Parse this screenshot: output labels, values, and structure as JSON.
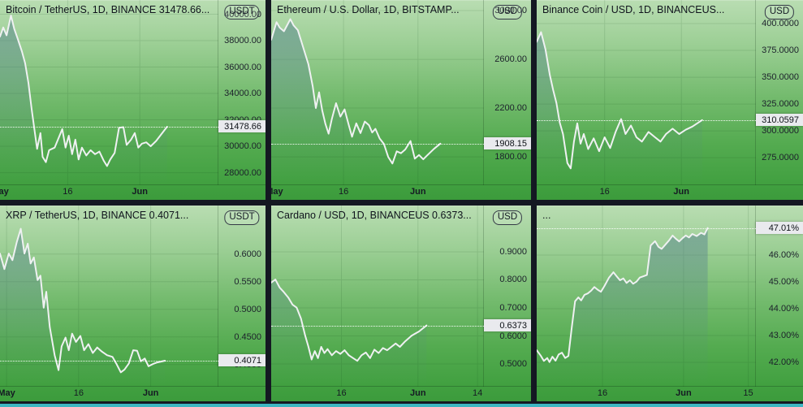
{
  "colors": {
    "background_top": "#b9ddb2",
    "background_bottom": "#3c9b3c",
    "separator": "#141822",
    "chart_line": "#eff1f2",
    "area_fill": "#54808e",
    "price_tag_bg": "#e9eaee",
    "bottom_accent": "#3db6c2"
  },
  "panels": [
    {
      "title": "Bitcoin / TetherUS, 1D, BINANCE  31478.66...",
      "badge": "USDT"
    },
    {
      "title": "Ethereum / U.S. Dollar, 1D, BITSTAMP...",
      "badge": "USD"
    },
    {
      "title": "Binance Coin / USD, 1D, BINANCEUS...",
      "badge": "USD"
    },
    {
      "title": "XRP / TetherUS, 1D, BINANCE  0.4071...",
      "badge": "USDT"
    },
    {
      "title": "Cardano / USD, 1D, BINANCEUS  0.6373...",
      "badge": "USD"
    },
    {
      "title": "...",
      "badge": ""
    }
  ],
  "chart_data": [
    {
      "type": "area",
      "name": "Bitcoin / TetherUS",
      "interval": "1D",
      "ylim": [
        27050,
        41077
      ],
      "yticks": [
        {
          "value": 40000,
          "label": "40000.00"
        },
        {
          "value": 38000,
          "label": "38000.00"
        },
        {
          "value": 36000,
          "label": "36000.00"
        },
        {
          "value": 34000,
          "label": "34000.00"
        },
        {
          "value": 32000,
          "label": "32000.00"
        },
        {
          "value": 30000,
          "label": "30000.00"
        },
        {
          "value": 28000,
          "label": "28000.00"
        }
      ],
      "xticks": [
        {
          "label": "May",
          "x": 0.0,
          "bold": true
        },
        {
          "label": "16",
          "x": 0.31,
          "bold": false
        },
        {
          "label": "Jun",
          "x": 0.64,
          "bold": true
        }
      ],
      "last": {
        "value": 31478.66,
        "label": "31478.66"
      },
      "points": [
        [
          0.0,
          38300
        ],
        [
          0.015,
          39000
        ],
        [
          0.03,
          38400
        ],
        [
          0.05,
          39900
        ],
        [
          0.065,
          38900
        ],
        [
          0.08,
          38200
        ],
        [
          0.1,
          37200
        ],
        [
          0.115,
          36300
        ],
        [
          0.13,
          34800
        ],
        [
          0.145,
          32800
        ],
        [
          0.16,
          31000
        ],
        [
          0.17,
          29800
        ],
        [
          0.185,
          31000
        ],
        [
          0.195,
          29200
        ],
        [
          0.21,
          28800
        ],
        [
          0.225,
          29700
        ],
        [
          0.25,
          29900
        ],
        [
          0.285,
          31300
        ],
        [
          0.3,
          29900
        ],
        [
          0.315,
          30800
        ],
        [
          0.33,
          29400
        ],
        [
          0.345,
          30500
        ],
        [
          0.36,
          29000
        ],
        [
          0.375,
          29900
        ],
        [
          0.395,
          29300
        ],
        [
          0.415,
          29700
        ],
        [
          0.435,
          29400
        ],
        [
          0.455,
          29600
        ],
        [
          0.475,
          28900
        ],
        [
          0.49,
          28500
        ],
        [
          0.505,
          29000
        ],
        [
          0.525,
          29500
        ],
        [
          0.545,
          31400
        ],
        [
          0.565,
          31450
        ],
        [
          0.58,
          30100
        ],
        [
          0.6,
          30500
        ],
        [
          0.617,
          31000
        ],
        [
          0.633,
          29900
        ],
        [
          0.65,
          30200
        ],
        [
          0.67,
          30300
        ],
        [
          0.69,
          30000
        ],
        [
          0.715,
          30400
        ],
        [
          0.765,
          31478.66
        ]
      ]
    },
    {
      "type": "area",
      "name": "Ethereum / U.S. Dollar",
      "interval": "1D",
      "ylim": [
        1567,
        3087
      ],
      "yticks": [
        {
          "value": 3000,
          "label": "3000.00"
        },
        {
          "value": 2600,
          "label": "2600.00"
        },
        {
          "value": 2200,
          "label": "2200.00"
        },
        {
          "value": 1800,
          "label": "1800.00"
        }
      ],
      "xticks": [
        {
          "label": "May",
          "x": 0.015,
          "bold": true
        },
        {
          "label": "16",
          "x": 0.34,
          "bold": false
        },
        {
          "label": "Jun",
          "x": 0.69,
          "bold": true
        }
      ],
      "last": {
        "value": 1908.15,
        "label": "1908.15"
      },
      "points": [
        [
          0.0,
          2760
        ],
        [
          0.025,
          2905
        ],
        [
          0.04,
          2860
        ],
        [
          0.06,
          2830
        ],
        [
          0.09,
          2930
        ],
        [
          0.105,
          2880
        ],
        [
          0.125,
          2840
        ],
        [
          0.15,
          2700
        ],
        [
          0.175,
          2560
        ],
        [
          0.195,
          2380
        ],
        [
          0.21,
          2200
        ],
        [
          0.225,
          2330
        ],
        [
          0.24,
          2180
        ],
        [
          0.255,
          2070
        ],
        [
          0.27,
          1990
        ],
        [
          0.285,
          2110
        ],
        [
          0.305,
          2240
        ],
        [
          0.325,
          2130
        ],
        [
          0.345,
          2190
        ],
        [
          0.365,
          2060
        ],
        [
          0.38,
          1965
        ],
        [
          0.4,
          2075
        ],
        [
          0.42,
          1995
        ],
        [
          0.44,
          2090
        ],
        [
          0.46,
          2060
        ],
        [
          0.475,
          2000
        ],
        [
          0.49,
          2030
        ],
        [
          0.51,
          1950
        ],
        [
          0.53,
          1905
        ],
        [
          0.55,
          1800
        ],
        [
          0.57,
          1745
        ],
        [
          0.59,
          1845
        ],
        [
          0.61,
          1830
        ],
        [
          0.63,
          1860
        ],
        [
          0.655,
          1930
        ],
        [
          0.675,
          1785
        ],
        [
          0.695,
          1815
        ],
        [
          0.715,
          1780
        ],
        [
          0.735,
          1815
        ],
        [
          0.765,
          1865
        ],
        [
          0.795,
          1908.15
        ]
      ]
    },
    {
      "type": "area",
      "name": "Binance Coin / USD",
      "interval": "1D",
      "ylim": [
        249.3,
        422
      ],
      "yticks": [
        {
          "value": 400,
          "label": "400.0000"
        },
        {
          "value": 375,
          "label": "375.0000"
        },
        {
          "value": 350,
          "label": "350.0000"
        },
        {
          "value": 325,
          "label": "325.0000"
        },
        {
          "value": 300,
          "label": "300.0000"
        },
        {
          "value": 275,
          "label": "275.0000"
        }
      ],
      "xticks": [
        {
          "label": "16",
          "x": 0.31,
          "bold": false
        },
        {
          "label": "Jun",
          "x": 0.66,
          "bold": true
        }
      ],
      "last": {
        "value": 310.0597,
        "label": "310.0597"
      },
      "points": [
        [
          0.0,
          383
        ],
        [
          0.02,
          392
        ],
        [
          0.04,
          376
        ],
        [
          0.06,
          352
        ],
        [
          0.075,
          338
        ],
        [
          0.09,
          326
        ],
        [
          0.105,
          308
        ],
        [
          0.12,
          297
        ],
        [
          0.14,
          270
        ],
        [
          0.155,
          265
        ],
        [
          0.17,
          290
        ],
        [
          0.185,
          307
        ],
        [
          0.2,
          288
        ],
        [
          0.215,
          297
        ],
        [
          0.235,
          283
        ],
        [
          0.26,
          293
        ],
        [
          0.285,
          281
        ],
        [
          0.31,
          294
        ],
        [
          0.335,
          284
        ],
        [
          0.36,
          299
        ],
        [
          0.385,
          311
        ],
        [
          0.405,
          297
        ],
        [
          0.43,
          305
        ],
        [
          0.455,
          294
        ],
        [
          0.48,
          290
        ],
        [
          0.51,
          299
        ],
        [
          0.54,
          294
        ],
        [
          0.565,
          290
        ],
        [
          0.59,
          297
        ],
        [
          0.62,
          302
        ],
        [
          0.65,
          297
        ],
        [
          0.68,
          301
        ],
        [
          0.71,
          304
        ],
        [
          0.755,
          310.0597
        ]
      ]
    },
    {
      "type": "area",
      "name": "XRP / TetherUS",
      "interval": "1D",
      "ylim": [
        0.36,
        0.688
      ],
      "yticks": [
        {
          "value": 0.6,
          "label": "0.6000"
        },
        {
          "value": 0.55,
          "label": "0.5500"
        },
        {
          "value": 0.5,
          "label": "0.5000"
        },
        {
          "value": 0.45,
          "label": "0.4500"
        },
        {
          "value": 0.4,
          "label": "0.4000"
        }
      ],
      "xticks": [
        {
          "label": "May",
          "x": 0.03,
          "bold": true
        },
        {
          "label": "16",
          "x": 0.36,
          "bold": false
        },
        {
          "label": "Jun",
          "x": 0.69,
          "bold": true
        }
      ],
      "last": {
        "value": 0.4071,
        "label": "0.4071"
      },
      "points": [
        [
          0.0,
          0.601
        ],
        [
          0.02,
          0.573
        ],
        [
          0.04,
          0.601
        ],
        [
          0.057,
          0.589
        ],
        [
          0.077,
          0.622
        ],
        [
          0.095,
          0.646
        ],
        [
          0.112,
          0.601
        ],
        [
          0.127,
          0.619
        ],
        [
          0.14,
          0.583
        ],
        [
          0.155,
          0.594
        ],
        [
          0.172,
          0.553
        ],
        [
          0.185,
          0.561
        ],
        [
          0.2,
          0.503
        ],
        [
          0.212,
          0.532
        ],
        [
          0.228,
          0.468
        ],
        [
          0.25,
          0.417
        ],
        [
          0.268,
          0.39
        ],
        [
          0.282,
          0.433
        ],
        [
          0.3,
          0.449
        ],
        [
          0.315,
          0.426
        ],
        [
          0.33,
          0.456
        ],
        [
          0.348,
          0.441
        ],
        [
          0.368,
          0.452
        ],
        [
          0.385,
          0.426
        ],
        [
          0.405,
          0.437
        ],
        [
          0.425,
          0.421
        ],
        [
          0.445,
          0.431
        ],
        [
          0.465,
          0.424
        ],
        [
          0.49,
          0.417
        ],
        [
          0.515,
          0.414
        ],
        [
          0.535,
          0.4
        ],
        [
          0.553,
          0.386
        ],
        [
          0.57,
          0.391
        ],
        [
          0.59,
          0.402
        ],
        [
          0.61,
          0.426
        ],
        [
          0.628,
          0.425
        ],
        [
          0.645,
          0.406
        ],
        [
          0.663,
          0.411
        ],
        [
          0.68,
          0.397
        ],
        [
          0.7,
          0.401
        ],
        [
          0.72,
          0.404
        ],
        [
          0.755,
          0.4071
        ]
      ]
    },
    {
      "type": "area",
      "name": "Cardano / USD",
      "interval": "1D",
      "ylim": [
        0.419,
        1.065
      ],
      "yticks": [
        {
          "value": 0.9,
          "label": "0.9000"
        },
        {
          "value": 0.8,
          "label": "0.8000"
        },
        {
          "value": 0.7,
          "label": "0.7000"
        },
        {
          "value": 0.6,
          "label": "0.6000"
        },
        {
          "value": 0.5,
          "label": "0.5000"
        }
      ],
      "xticks": [
        {
          "label": "16",
          "x": 0.33,
          "bold": false
        },
        {
          "label": "Jun",
          "x": 0.69,
          "bold": true
        },
        {
          "label": "14",
          "x": 0.97,
          "bold": false
        }
      ],
      "last": {
        "value": 0.6373,
        "label": "0.6373"
      },
      "points": [
        [
          0.0,
          0.79
        ],
        [
          0.02,
          0.801
        ],
        [
          0.04,
          0.772
        ],
        [
          0.06,
          0.756
        ],
        [
          0.08,
          0.737
        ],
        [
          0.1,
          0.712
        ],
        [
          0.12,
          0.701
        ],
        [
          0.14,
          0.662
        ],
        [
          0.16,
          0.601
        ],
        [
          0.175,
          0.562
        ],
        [
          0.19,
          0.516
        ],
        [
          0.205,
          0.546
        ],
        [
          0.22,
          0.521
        ],
        [
          0.235,
          0.561
        ],
        [
          0.25,
          0.539
        ],
        [
          0.265,
          0.553
        ],
        [
          0.285,
          0.531
        ],
        [
          0.305,
          0.546
        ],
        [
          0.325,
          0.536
        ],
        [
          0.345,
          0.549
        ],
        [
          0.365,
          0.531
        ],
        [
          0.385,
          0.521
        ],
        [
          0.405,
          0.511
        ],
        [
          0.425,
          0.531
        ],
        [
          0.445,
          0.541
        ],
        [
          0.465,
          0.521
        ],
        [
          0.485,
          0.551
        ],
        [
          0.505,
          0.539
        ],
        [
          0.525,
          0.557
        ],
        [
          0.545,
          0.549
        ],
        [
          0.565,
          0.561
        ],
        [
          0.585,
          0.573
        ],
        [
          0.605,
          0.561
        ],
        [
          0.63,
          0.581
        ],
        [
          0.66,
          0.601
        ],
        [
          0.695,
          0.616
        ],
        [
          0.73,
          0.6373
        ]
      ]
    },
    {
      "type": "area",
      "name": "...",
      "interval": "1D",
      "ylim": [
        41.09,
        47.85
      ],
      "yticks": [
        {
          "value": 46,
          "label": "46.00%"
        },
        {
          "value": 45,
          "label": "45.00%"
        },
        {
          "value": 44,
          "label": "44.00%"
        },
        {
          "value": 43,
          "label": "43.00%"
        },
        {
          "value": 42,
          "label": "42.00%"
        }
      ],
      "xticks": [
        {
          "label": "16",
          "x": 0.3,
          "bold": false
        },
        {
          "label": "Jun",
          "x": 0.67,
          "bold": true
        },
        {
          "label": "15",
          "x": 0.965,
          "bold": false
        }
      ],
      "last": {
        "value": 47.01,
        "label": "47.01%"
      },
      "points": [
        [
          0.0,
          42.45
        ],
        [
          0.018,
          42.25
        ],
        [
          0.033,
          42.05
        ],
        [
          0.048,
          42.16
        ],
        [
          0.058,
          42.01
        ],
        [
          0.072,
          42.21
        ],
        [
          0.086,
          42.06
        ],
        [
          0.1,
          42.29
        ],
        [
          0.115,
          42.36
        ],
        [
          0.13,
          42.16
        ],
        [
          0.145,
          42.24
        ],
        [
          0.16,
          43.3
        ],
        [
          0.175,
          44.28
        ],
        [
          0.19,
          44.42
        ],
        [
          0.203,
          44.31
        ],
        [
          0.218,
          44.52
        ],
        [
          0.233,
          44.57
        ],
        [
          0.248,
          44.67
        ],
        [
          0.263,
          44.81
        ],
        [
          0.278,
          44.71
        ],
        [
          0.293,
          44.63
        ],
        [
          0.31,
          44.86
        ],
        [
          0.33,
          45.16
        ],
        [
          0.35,
          45.36
        ],
        [
          0.365,
          45.21
        ],
        [
          0.38,
          45.06
        ],
        [
          0.395,
          45.13
        ],
        [
          0.41,
          44.96
        ],
        [
          0.425,
          45.06
        ],
        [
          0.44,
          44.93
        ],
        [
          0.455,
          45.01
        ],
        [
          0.47,
          45.16
        ],
        [
          0.487,
          45.21
        ],
        [
          0.503,
          45.26
        ],
        [
          0.52,
          46.36
        ],
        [
          0.54,
          46.52
        ],
        [
          0.555,
          46.31
        ],
        [
          0.57,
          46.23
        ],
        [
          0.59,
          46.42
        ],
        [
          0.605,
          46.56
        ],
        [
          0.62,
          46.73
        ],
        [
          0.635,
          46.61
        ],
        [
          0.65,
          46.51
        ],
        [
          0.665,
          46.63
        ],
        [
          0.68,
          46.73
        ],
        [
          0.695,
          46.66
        ],
        [
          0.71,
          46.79
        ],
        [
          0.73,
          46.71
        ],
        [
          0.75,
          46.83
        ],
        [
          0.765,
          46.77
        ],
        [
          0.78,
          47.01
        ]
      ]
    }
  ]
}
